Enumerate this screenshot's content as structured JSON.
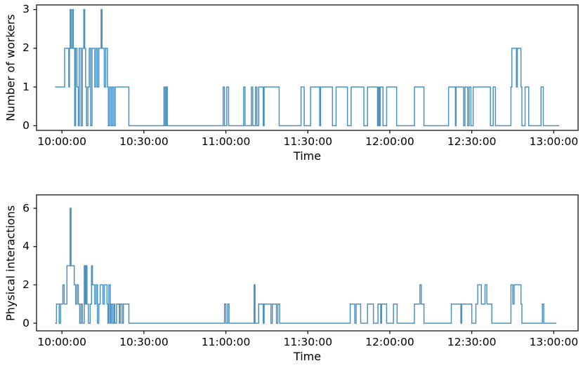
{
  "figure": {
    "background": "#ffffff",
    "spine_color": "#000000"
  },
  "chart_data": [
    {
      "type": "line",
      "line_style": "step-post",
      "title": "",
      "xlabel": "Time",
      "ylabel": "Number of workers",
      "legend": null,
      "grid": false,
      "line_color": "#4a92c3",
      "x_tick_labels": [
        "10:00:00",
        "10:30:00",
        "11:00:00",
        "11:30:00",
        "12:00:00",
        "12:30:00",
        "13:00:00"
      ],
      "x_tick_minutes": [
        0,
        30,
        60,
        90,
        120,
        150,
        180
      ],
      "y_ticks": [
        0,
        1,
        2,
        3
      ],
      "xlim_minutes": [
        -9.3,
        188.9
      ],
      "ylim": [
        -0.12,
        3.12
      ],
      "points": [
        [
          "09:57:30",
          1
        ],
        [
          "10:01:00",
          2
        ],
        [
          "10:02:30",
          1
        ],
        [
          "10:02:45",
          2
        ],
        [
          "10:03:00",
          3
        ],
        [
          "10:03:20",
          2
        ],
        [
          "10:03:50",
          3
        ],
        [
          "10:04:10",
          2
        ],
        [
          "10:04:40",
          0
        ],
        [
          "10:05:00",
          2
        ],
        [
          "10:05:30",
          1
        ],
        [
          "10:06:00",
          0
        ],
        [
          "10:06:20",
          2
        ],
        [
          "10:07:00",
          0
        ],
        [
          "10:07:30",
          2
        ],
        [
          "10:08:00",
          3
        ],
        [
          "10:08:20",
          2
        ],
        [
          "10:08:40",
          1
        ],
        [
          "10:09:00",
          0
        ],
        [
          "10:09:30",
          1
        ],
        [
          "10:10:00",
          2
        ],
        [
          "10:10:30",
          0
        ],
        [
          "10:11:00",
          2
        ],
        [
          "10:12:00",
          1
        ],
        [
          "10:12:30",
          2
        ],
        [
          "10:13:00",
          1
        ],
        [
          "10:13:30",
          2
        ],
        [
          "10:14:20",
          3
        ],
        [
          "10:14:40",
          2
        ],
        [
          "10:15:30",
          1
        ],
        [
          "10:16:00",
          2
        ],
        [
          "10:16:40",
          1
        ],
        [
          "10:17:00",
          0
        ],
        [
          "10:17:30",
          1
        ],
        [
          "10:18:00",
          0
        ],
        [
          "10:18:30",
          1
        ],
        [
          "10:19:00",
          0
        ],
        [
          "10:19:30",
          1
        ],
        [
          "10:24:30",
          0
        ],
        [
          "10:37:20",
          1
        ],
        [
          "10:37:45",
          0
        ],
        [
          "10:38:10",
          1
        ],
        [
          "10:38:35",
          0
        ],
        [
          "10:59:00",
          1
        ],
        [
          "10:59:30",
          0
        ],
        [
          "11:00:20",
          1
        ],
        [
          "11:01:00",
          0
        ],
        [
          "11:06:30",
          1
        ],
        [
          "11:07:00",
          0
        ],
        [
          "11:09:20",
          1
        ],
        [
          "11:09:50",
          0
        ],
        [
          "11:10:50",
          1
        ],
        [
          "11:11:20",
          0
        ],
        [
          "11:12:00",
          1
        ],
        [
          "11:13:40",
          0
        ],
        [
          "11:14:00",
          1
        ],
        [
          "11:19:30",
          0
        ],
        [
          "11:27:30",
          1
        ],
        [
          "11:28:40",
          0
        ],
        [
          "11:31:00",
          1
        ],
        [
          "11:34:20",
          0
        ],
        [
          "11:34:40",
          1
        ],
        [
          "11:39:00",
          0
        ],
        [
          "11:40:20",
          1
        ],
        [
          "11:44:30",
          0
        ],
        [
          "11:45:50",
          1
        ],
        [
          "11:50:30",
          0
        ],
        [
          "11:51:50",
          1
        ],
        [
          "11:55:30",
          0
        ],
        [
          "11:55:50",
          1
        ],
        [
          "11:56:10",
          0
        ],
        [
          "11:56:30",
          1
        ],
        [
          "11:57:30",
          0
        ],
        [
          "11:58:50",
          1
        ],
        [
          "12:02:30",
          0
        ],
        [
          "12:09:00",
          1
        ],
        [
          "12:12:30",
          0
        ],
        [
          "12:21:30",
          1
        ],
        [
          "12:24:00",
          0
        ],
        [
          "12:24:15",
          1
        ],
        [
          "12:27:00",
          0
        ],
        [
          "12:27:30",
          1
        ],
        [
          "12:28:30",
          0
        ],
        [
          "12:29:00",
          1
        ],
        [
          "12:29:40",
          0
        ],
        [
          "12:30:30",
          1
        ],
        [
          "12:36:50",
          0
        ],
        [
          "12:37:50",
          1
        ],
        [
          "12:38:40",
          0
        ],
        [
          "12:44:20",
          1
        ],
        [
          "12:44:40",
          2
        ],
        [
          "12:46:20",
          1
        ],
        [
          "12:46:40",
          2
        ],
        [
          "12:48:00",
          1
        ],
        [
          "12:48:20",
          0
        ],
        [
          "12:49:30",
          1
        ],
        [
          "12:50:50",
          0
        ],
        [
          "12:55:20",
          1
        ],
        [
          "12:56:10",
          0
        ],
        [
          "13:02:00",
          0
        ]
      ]
    },
    {
      "type": "line",
      "line_style": "step-post",
      "title": "",
      "xlabel": "Time",
      "ylabel": "Physical interactions",
      "legend": null,
      "grid": false,
      "line_color": "#4a92c3",
      "x_tick_labels": [
        "10:00:00",
        "10:30:00",
        "11:00:00",
        "11:30:00",
        "12:00:00",
        "12:30:00",
        "13:00:00"
      ],
      "x_tick_minutes": [
        0,
        30,
        60,
        90,
        120,
        150,
        180
      ],
      "y_ticks": [
        0,
        2,
        4,
        6
      ],
      "xlim_minutes": [
        -9.3,
        188.9
      ],
      "ylim": [
        -0.4,
        6.7
      ],
      "points": [
        [
          "09:57:30",
          0
        ],
        [
          "09:58:00",
          1
        ],
        [
          "09:59:00",
          0
        ],
        [
          "09:59:30",
          1
        ],
        [
          "10:00:20",
          2
        ],
        [
          "10:00:50",
          1
        ],
        [
          "10:01:50",
          3
        ],
        [
          "10:03:00",
          6
        ],
        [
          "10:03:20",
          3
        ],
        [
          "10:04:30",
          2
        ],
        [
          "10:05:00",
          1
        ],
        [
          "10:05:30",
          2
        ],
        [
          "10:06:00",
          1
        ],
        [
          "10:06:30",
          0
        ],
        [
          "10:07:00",
          1
        ],
        [
          "10:07:30",
          0
        ],
        [
          "10:08:10",
          3
        ],
        [
          "10:08:30",
          1
        ],
        [
          "10:08:50",
          3
        ],
        [
          "10:09:10",
          1
        ],
        [
          "10:09:40",
          0
        ],
        [
          "10:10:20",
          1
        ],
        [
          "10:10:50",
          3
        ],
        [
          "10:11:10",
          2
        ],
        [
          "10:12:00",
          1
        ],
        [
          "10:12:30",
          2
        ],
        [
          "10:13:00",
          0
        ],
        [
          "10:13:30",
          1
        ],
        [
          "10:14:00",
          2
        ],
        [
          "10:15:00",
          1
        ],
        [
          "10:15:30",
          2
        ],
        [
          "10:16:30",
          1
        ],
        [
          "10:16:50",
          0
        ],
        [
          "10:17:10",
          2
        ],
        [
          "10:17:40",
          0
        ],
        [
          "10:18:00",
          1
        ],
        [
          "10:18:30",
          0
        ],
        [
          "10:19:00",
          1
        ],
        [
          "10:19:20",
          0
        ],
        [
          "10:20:00",
          1
        ],
        [
          "10:21:00",
          0
        ],
        [
          "10:21:20",
          1
        ],
        [
          "10:22:00",
          0
        ],
        [
          "10:22:30",
          1
        ],
        [
          "10:24:30",
          0
        ],
        [
          "10:59:30",
          1
        ],
        [
          "11:00:00",
          0
        ],
        [
          "11:00:40",
          1
        ],
        [
          "11:01:10",
          0
        ],
        [
          "11:10:20",
          2
        ],
        [
          "11:10:40",
          0
        ],
        [
          "11:12:00",
          1
        ],
        [
          "11:13:40",
          0
        ],
        [
          "11:14:00",
          1
        ],
        [
          "11:16:30",
          0
        ],
        [
          "11:17:00",
          1
        ],
        [
          "11:18:30",
          0
        ],
        [
          "11:19:00",
          1
        ],
        [
          "11:19:40",
          0
        ],
        [
          "11:45:30",
          1
        ],
        [
          "11:47:10",
          0
        ],
        [
          "11:47:40",
          1
        ],
        [
          "11:49:20",
          0
        ],
        [
          "11:51:50",
          1
        ],
        [
          "11:54:00",
          0
        ],
        [
          "11:55:40",
          1
        ],
        [
          "11:56:40",
          0
        ],
        [
          "11:57:00",
          1
        ],
        [
          "11:58:50",
          0
        ],
        [
          "12:01:20",
          1
        ],
        [
          "12:02:40",
          0
        ],
        [
          "12:09:00",
          1
        ],
        [
          "12:11:00",
          2
        ],
        [
          "12:11:30",
          1
        ],
        [
          "12:12:30",
          0
        ],
        [
          "12:22:30",
          1
        ],
        [
          "12:26:00",
          0
        ],
        [
          "12:26:20",
          1
        ],
        [
          "12:30:00",
          0
        ],
        [
          "12:31:30",
          1
        ],
        [
          "12:32:10",
          2
        ],
        [
          "12:33:30",
          1
        ],
        [
          "12:34:50",
          2
        ],
        [
          "12:35:30",
          1
        ],
        [
          "12:37:20",
          0
        ],
        [
          "12:44:20",
          2
        ],
        [
          "12:45:00",
          1
        ],
        [
          "12:45:30",
          2
        ],
        [
          "12:48:00",
          1
        ],
        [
          "12:48:20",
          0
        ],
        [
          "12:55:50",
          1
        ],
        [
          "12:56:20",
          0
        ],
        [
          "13:01:00",
          0
        ]
      ]
    }
  ]
}
